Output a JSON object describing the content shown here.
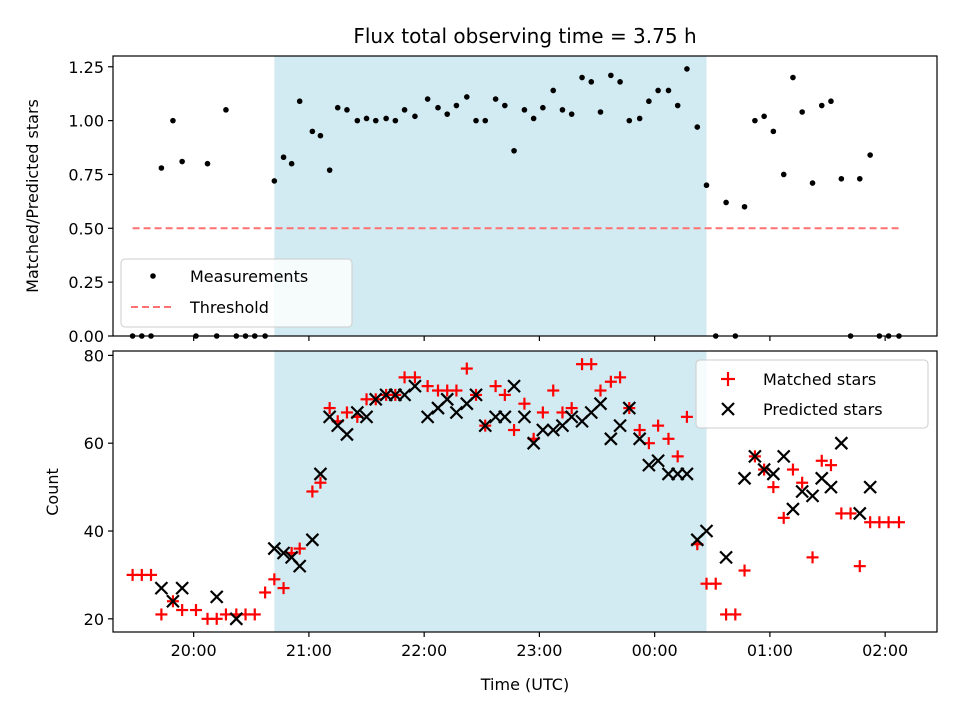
{
  "chart_data": [
    {
      "type": "scatter",
      "title": "Flux total observing time = 3.75 h",
      "ylabel": "Matched/Predicted stars",
      "xlabel": "",
      "x_ticks": [
        "20:00",
        "21:00",
        "22:00",
        "23:00",
        "00:00",
        "01:00",
        "02:00"
      ],
      "x_tick_hours": [
        20,
        21,
        22,
        23,
        24,
        25,
        26
      ],
      "xlim_hours": [
        19.3,
        26.45
      ],
      "ylim": [
        0,
        1.3
      ],
      "y_ticks": [
        "0.00",
        "0.25",
        "0.50",
        "0.75",
        "1.00",
        "1.25"
      ],
      "y_tick_values": [
        0,
        0.25,
        0.5,
        0.75,
        1.0,
        1.25
      ],
      "shaded_interval_hours": [
        20.7,
        24.45
      ],
      "shade_color": "#add8e6",
      "legend_position": "lower left",
      "series": [
        {
          "name": "Measurements",
          "color": "#000000",
          "marker": "dot",
          "x_hours": [
            19.47,
            19.55,
            19.63,
            19.72,
            19.82,
            19.9,
            20.02,
            20.12,
            20.2,
            20.28,
            20.37,
            20.45,
            20.53,
            20.62,
            20.7,
            20.78,
            20.85,
            20.92,
            21.03,
            21.1,
            21.18,
            21.25,
            21.33,
            21.42,
            21.5,
            21.58,
            21.67,
            21.75,
            21.83,
            21.92,
            22.03,
            22.12,
            22.2,
            22.28,
            22.37,
            22.45,
            22.53,
            22.62,
            22.7,
            22.78,
            22.87,
            22.95,
            23.03,
            23.12,
            23.2,
            23.28,
            23.37,
            23.45,
            23.53,
            23.62,
            23.7,
            23.78,
            23.87,
            23.95,
            24.03,
            24.12,
            24.2,
            24.28,
            24.37,
            24.45,
            24.53,
            24.62,
            24.7,
            24.78,
            24.87,
            24.95,
            25.03,
            25.12,
            25.2,
            25.28,
            25.37,
            25.45,
            25.53,
            25.62,
            25.7,
            25.78,
            25.87,
            25.95,
            26.03,
            26.12
          ],
          "y": [
            0,
            0,
            0,
            0.78,
            1.0,
            0.81,
            0,
            0.8,
            0,
            1.05,
            0,
            0,
            0,
            0,
            0.72,
            0.83,
            0.8,
            1.09,
            0.95,
            0.93,
            0.77,
            1.06,
            1.05,
            1.0,
            1.01,
            1.0,
            1.01,
            1.0,
            1.05,
            1.02,
            1.1,
            1.06,
            1.03,
            1.07,
            1.11,
            1.0,
            1.0,
            1.1,
            1.07,
            0.86,
            1.05,
            1.01,
            1.06,
            1.14,
            1.05,
            1.03,
            1.2,
            1.18,
            1.04,
            1.21,
            1.18,
            1.0,
            1.01,
            1.09,
            1.14,
            1.14,
            1.07,
            1.24,
            0.97,
            0.7,
            0,
            0.62,
            0,
            0.6,
            1.0,
            1.02,
            0.95,
            0.75,
            1.2,
            1.04,
            0.71,
            1.07,
            1.09,
            0.73,
            0,
            0.73,
            0.84,
            0,
            0,
            0
          ]
        },
        {
          "name": "Threshold",
          "color": "#ff7070",
          "style": "dashed",
          "x_hours": [
            19.47,
            26.12
          ],
          "y": [
            0.5,
            0.5
          ]
        }
      ]
    },
    {
      "type": "scatter",
      "title": "",
      "xlabel": "Time (UTC)",
      "ylabel": "Count",
      "x_ticks": [
        "20:00",
        "21:00",
        "22:00",
        "23:00",
        "00:00",
        "01:00",
        "02:00"
      ],
      "x_tick_hours": [
        20,
        21,
        22,
        23,
        24,
        25,
        26
      ],
      "xlim_hours": [
        19.3,
        26.45
      ],
      "ylim": [
        17,
        81
      ],
      "y_ticks": [
        "20",
        "40",
        "60",
        "80"
      ],
      "y_tick_values": [
        20,
        40,
        60,
        80
      ],
      "shaded_interval_hours": [
        20.7,
        24.45
      ],
      "shade_color": "#add8e6",
      "legend_position": "upper right",
      "series": [
        {
          "name": "Matched stars",
          "color": "#ff0000",
          "marker": "plus",
          "x_hours": [
            19.47,
            19.55,
            19.63,
            19.72,
            19.82,
            19.9,
            20.02,
            20.12,
            20.2,
            20.28,
            20.37,
            20.45,
            20.53,
            20.62,
            20.7,
            20.78,
            20.85,
            20.92,
            21.03,
            21.1,
            21.18,
            21.25,
            21.33,
            21.42,
            21.5,
            21.58,
            21.67,
            21.75,
            21.83,
            21.92,
            22.03,
            22.12,
            22.2,
            22.28,
            22.37,
            22.45,
            22.53,
            22.62,
            22.7,
            22.78,
            22.87,
            22.95,
            23.03,
            23.12,
            23.2,
            23.28,
            23.37,
            23.45,
            23.53,
            23.62,
            23.7,
            23.78,
            23.87,
            23.95,
            24.03,
            24.12,
            24.2,
            24.28,
            24.37,
            24.45,
            24.53,
            24.62,
            24.7,
            24.78,
            24.87,
            24.95,
            25.03,
            25.12,
            25.2,
            25.28,
            25.37,
            25.45,
            25.53,
            25.62,
            25.7,
            25.78,
            25.87,
            25.95,
            26.03,
            26.12
          ],
          "y": [
            30,
            30,
            30,
            21,
            24,
            22,
            22,
            20,
            20,
            21,
            21,
            21,
            21,
            26,
            29,
            27,
            35,
            36,
            49,
            51,
            68,
            65,
            67,
            66,
            70,
            70,
            71,
            71,
            75,
            75,
            73,
            72,
            72,
            72,
            77,
            71,
            64,
            73,
            71,
            63,
            69,
            61,
            67,
            72,
            67,
            68,
            78,
            78,
            72,
            74,
            75,
            68,
            63,
            60,
            64,
            61,
            57,
            66,
            37,
            28,
            28,
            21,
            21,
            31,
            57,
            54,
            50,
            43,
            54,
            51,
            34,
            56,
            55,
            44,
            44,
            32,
            42,
            42,
            42,
            42
          ]
        },
        {
          "name": "Predicted stars",
          "color": "#000000",
          "marker": "x",
          "x_hours": [
            19.72,
            19.82,
            19.9,
            20.2,
            20.37,
            20.7,
            20.78,
            20.85,
            20.92,
            21.03,
            21.1,
            21.18,
            21.25,
            21.33,
            21.42,
            21.5,
            21.58,
            21.67,
            21.75,
            21.83,
            21.92,
            22.03,
            22.12,
            22.2,
            22.28,
            22.37,
            22.45,
            22.53,
            22.62,
            22.7,
            22.78,
            22.87,
            22.95,
            23.03,
            23.12,
            23.2,
            23.28,
            23.37,
            23.45,
            23.53,
            23.62,
            23.7,
            23.78,
            23.87,
            23.95,
            24.03,
            24.12,
            24.2,
            24.28,
            24.37,
            24.45,
            24.62,
            24.78,
            24.87,
            24.95,
            25.03,
            25.12,
            25.2,
            25.28,
            25.37,
            25.45,
            25.53,
            25.62,
            25.78,
            25.87
          ],
          "y": [
            27,
            24,
            27,
            25,
            20,
            36,
            35,
            34,
            32,
            38,
            53,
            66,
            64,
            62,
            67,
            66,
            70,
            71,
            71,
            71,
            73,
            66,
            68,
            70,
            67,
            69,
            71,
            64,
            66,
            66,
            73,
            66,
            60,
            63,
            63,
            64,
            66,
            65,
            67,
            69,
            61,
            64,
            68,
            61,
            55,
            56,
            53,
            53,
            53,
            38,
            40,
            34,
            52,
            57,
            54,
            53,
            57,
            45,
            49,
            48,
            52,
            50,
            60,
            44,
            50
          ]
        }
      ]
    }
  ]
}
